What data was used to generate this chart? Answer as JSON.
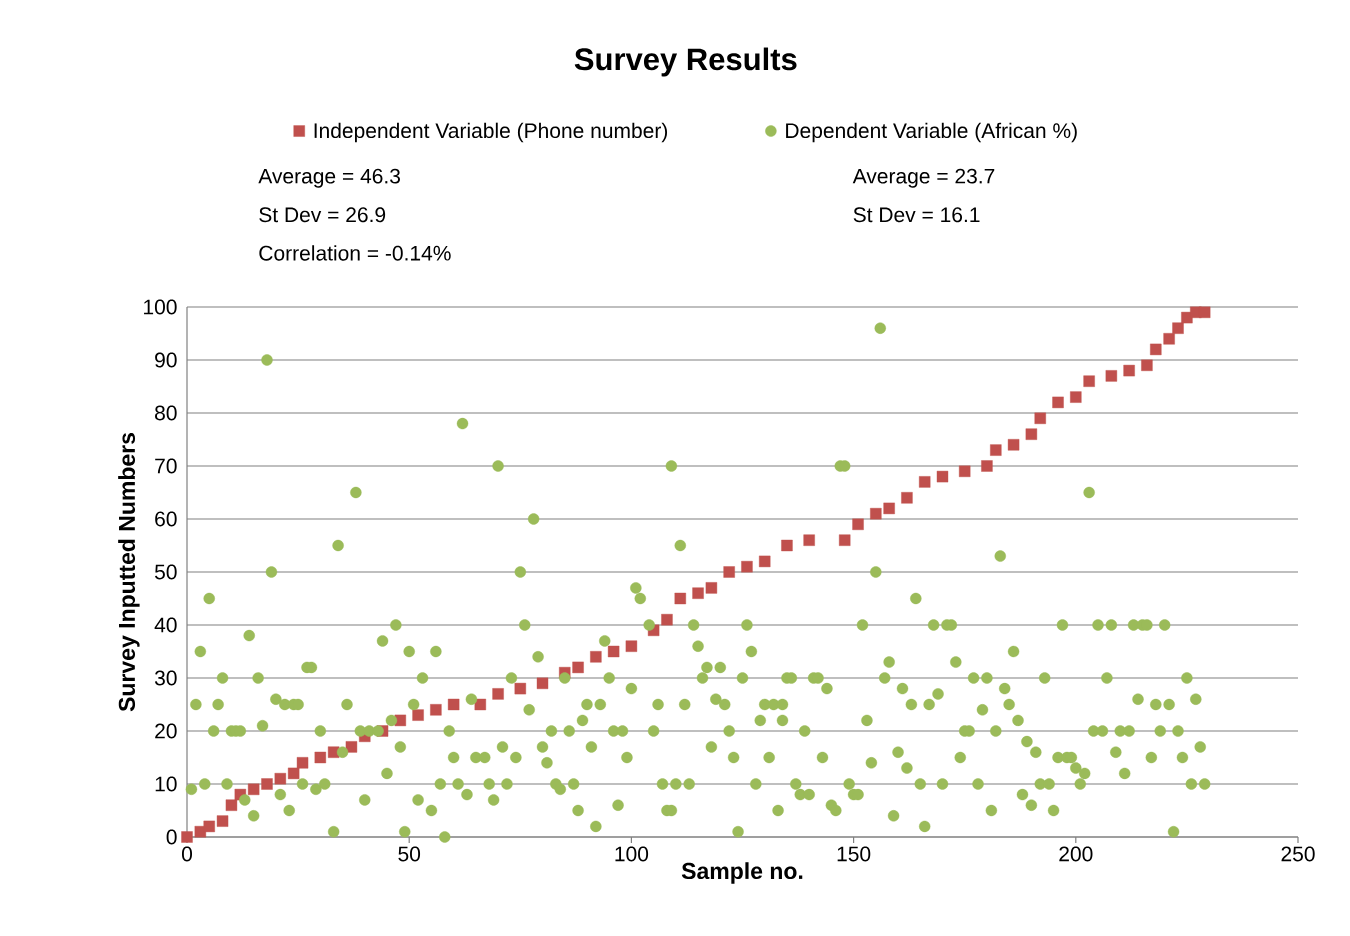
{
  "chart_data": {
    "type": "scatter",
    "title": "Survey Results",
    "xlabel": "Sample no.",
    "ylabel": "Survey Inputted Numbers",
    "xlim": [
      0,
      250
    ],
    "xticks": [
      0,
      50,
      100,
      150,
      200,
      250
    ],
    "ylim": [
      0,
      100
    ],
    "yticks": [
      0,
      10,
      20,
      30,
      40,
      50,
      60,
      70,
      80,
      90,
      100
    ],
    "grid": "y",
    "legend": "top",
    "annotations": [
      "Average = 46.3",
      "St Dev = 26.9",
      "Correlation = -0.14%",
      "Average = 23.7",
      "St Dev = 16.1"
    ],
    "series": [
      {
        "name": "Independent Variable (Phone number)",
        "color": "#c0504d",
        "marker": "square",
        "x": [
          0,
          3,
          5,
          8,
          10,
          12,
          15,
          18,
          21,
          24,
          26,
          30,
          33,
          37,
          40,
          44,
          48,
          52,
          56,
          60,
          66,
          70,
          75,
          80,
          85,
          88,
          92,
          96,
          100,
          105,
          108,
          111,
          115,
          118,
          122,
          126,
          130,
          135,
          140,
          148,
          151,
          155,
          158,
          162,
          166,
          170,
          175,
          180,
          182,
          186,
          190,
          192,
          196,
          200,
          203,
          208,
          212,
          216,
          218,
          221,
          223,
          225,
          227,
          229
        ],
        "values": [
          0,
          1,
          2,
          3,
          6,
          8,
          9,
          10,
          11,
          12,
          14,
          15,
          16,
          17,
          19,
          20,
          22,
          23,
          24,
          25,
          25,
          27,
          28,
          29,
          31,
          32,
          34,
          35,
          36,
          39,
          41,
          45,
          46,
          47,
          50,
          51,
          52,
          55,
          56,
          56,
          59,
          61,
          62,
          64,
          67,
          68,
          69,
          70,
          73,
          74,
          76,
          79,
          82,
          83,
          86,
          87,
          88,
          89,
          92,
          94,
          96,
          98,
          99,
          99
        ]
      },
      {
        "name": "Dependent Variable (African %)",
        "color": "#9bbb59",
        "marker": "circle",
        "x": [
          1,
          2,
          3,
          4,
          5,
          6,
          7,
          8,
          9,
          10,
          11,
          12,
          13,
          14,
          15,
          16,
          17,
          18,
          19,
          20,
          21,
          22,
          23,
          24,
          25,
          26,
          27,
          28,
          29,
          30,
          31,
          33,
          34,
          35,
          36,
          38,
          39,
          40,
          41,
          43,
          44,
          45,
          46,
          47,
          48,
          49,
          50,
          51,
          52,
          53,
          55,
          56,
          57,
          58,
          59,
          60,
          61,
          62,
          63,
          64,
          65,
          67,
          68,
          69,
          70,
          71,
          72,
          73,
          74,
          75,
          76,
          77,
          78,
          79,
          80,
          81,
          82,
          83,
          84,
          85,
          86,
          87,
          88,
          89,
          90,
          91,
          92,
          93,
          94,
          95,
          96,
          97,
          98,
          99,
          100,
          101,
          102,
          104,
          105,
          106,
          107,
          108,
          109,
          109,
          110,
          111,
          112,
          113,
          114,
          115,
          116,
          117,
          118,
          119,
          120,
          121,
          122,
          123,
          124,
          125,
          126,
          127,
          128,
          129,
          130,
          131,
          132,
          133,
          134,
          134,
          135,
          136,
          137,
          138,
          139,
          140,
          141,
          142,
          143,
          144,
          145,
          146,
          147,
          148,
          149,
          150,
          151,
          152,
          153,
          154,
          155,
          156,
          157,
          158,
          159,
          160,
          161,
          162,
          163,
          164,
          165,
          166,
          167,
          168,
          169,
          170,
          171,
          172,
          173,
          174,
          175,
          176,
          177,
          178,
          179,
          180,
          181,
          182,
          183,
          184,
          185,
          186,
          187,
          188,
          189,
          190,
          191,
          192,
          193,
          194,
          195,
          196,
          197,
          198,
          199,
          200,
          201,
          202,
          203,
          204,
          205,
          206,
          207,
          208,
          209,
          210,
          211,
          212,
          213,
          214,
          215,
          216,
          217,
          218,
          219,
          220,
          221,
          222,
          223,
          224,
          225,
          226,
          227,
          228,
          229
        ],
        "values": [
          9,
          25,
          35,
          10,
          45,
          20,
          25,
          30,
          10,
          20,
          20,
          20,
          7,
          38,
          4,
          30,
          21,
          90,
          50,
          26,
          8,
          25,
          5,
          25,
          25,
          10,
          32,
          32,
          9,
          20,
          10,
          1,
          55,
          16,
          25,
          65,
          20,
          7,
          20,
          20,
          37,
          12,
          22,
          40,
          17,
          1,
          35,
          25,
          7,
          30,
          5,
          35,
          10,
          0,
          20,
          15,
          10,
          78,
          8,
          26,
          15,
          15,
          10,
          7,
          70,
          17,
          10,
          30,
          15,
          50,
          40,
          24,
          60,
          34,
          17,
          14,
          20,
          10,
          9,
          30,
          20,
          10,
          5,
          22,
          25,
          17,
          2,
          25,
          37,
          30,
          20,
          6,
          20,
          15,
          28,
          47,
          45,
          40,
          20,
          25,
          10,
          5,
          5,
          70,
          10,
          55,
          25,
          10,
          40,
          36,
          30,
          32,
          17,
          26,
          32,
          25,
          20,
          15,
          1,
          30,
          40,
          35,
          10,
          22,
          25,
          15,
          25,
          5,
          22,
          25,
          30,
          30,
          10,
          8,
          20,
          8,
          30,
          30,
          15,
          28,
          6,
          5,
          70,
          70,
          10,
          8,
          8,
          40,
          22,
          14,
          50,
          96,
          30,
          33,
          4,
          16,
          28,
          13,
          25,
          45,
          10,
          2,
          25,
          40,
          27,
          10,
          40,
          40,
          33,
          15,
          20,
          20,
          30,
          10,
          24,
          30,
          5,
          20,
          53,
          28,
          25,
          35,
          22,
          8,
          18,
          6,
          16,
          10,
          30,
          10,
          5,
          15,
          40,
          15,
          15,
          13,
          10,
          12,
          65,
          20,
          40,
          20,
          30,
          40,
          16,
          20,
          12,
          20,
          40,
          26,
          40,
          40,
          15,
          25,
          20,
          40,
          25,
          1,
          20,
          15,
          30,
          10,
          26,
          17,
          10
        ]
      }
    ]
  }
}
